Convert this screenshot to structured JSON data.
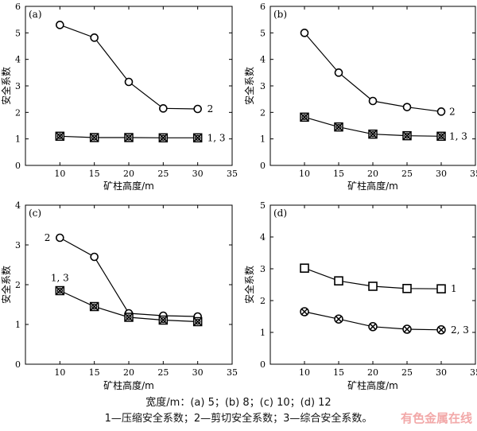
{
  "chart_data": [
    {
      "type": "line",
      "panel_label": "(a)",
      "x": [
        10,
        15,
        20,
        25,
        30
      ],
      "xlabel": "矿柱高度/m",
      "ylabel": "安全系数",
      "xlim": [
        5,
        35
      ],
      "ylim": [
        0,
        6
      ],
      "xticks": [
        "10",
        "15",
        "20",
        "25",
        "30",
        "35"
      ],
      "yticks": [
        "0",
        "1",
        "2",
        "3",
        "4",
        "5",
        "6"
      ],
      "series": [
        {
          "name": "2",
          "marker": "circle",
          "values": [
            5.3,
            4.82,
            3.15,
            2.15,
            2.13
          ]
        },
        {
          "name": "1, 3",
          "marker": "boxx",
          "values": [
            1.1,
            1.05,
            1.05,
            1.04,
            1.04
          ]
        }
      ]
    },
    {
      "type": "line",
      "panel_label": "(b)",
      "x": [
        10,
        15,
        20,
        25,
        30
      ],
      "xlabel": "矿柱高度/m",
      "ylabel": "安全系数",
      "xlim": [
        5,
        35
      ],
      "ylim": [
        0,
        6
      ],
      "xticks": [
        "10",
        "15",
        "20",
        "25",
        "30",
        "35"
      ],
      "yticks": [
        "0",
        "1",
        "2",
        "3",
        "4",
        "5",
        "6"
      ],
      "series": [
        {
          "name": "2",
          "marker": "circle",
          "values": [
            5.0,
            3.5,
            2.43,
            2.2,
            2.03
          ]
        },
        {
          "name": "1, 3",
          "marker": "boxx",
          "values": [
            1.82,
            1.45,
            1.18,
            1.12,
            1.1
          ]
        }
      ]
    },
    {
      "type": "line",
      "panel_label": "(c)",
      "x": [
        10,
        15,
        20,
        25,
        30
      ],
      "xlabel": "矿柱高度/m",
      "ylabel": "安全系数",
      "xlim": [
        5,
        35
      ],
      "ylim": [
        0,
        4
      ],
      "xticks": [
        "10",
        "15",
        "20",
        "25",
        "30",
        "35"
      ],
      "yticks": [
        "0",
        "1",
        "2",
        "3",
        "4"
      ],
      "series": [
        {
          "name": "2",
          "marker": "circle",
          "values": [
            3.18,
            2.7,
            1.28,
            1.22,
            1.2
          ]
        },
        {
          "name": "1, 3",
          "marker": "boxx",
          "values": [
            1.85,
            1.45,
            1.18,
            1.11,
            1.07
          ]
        }
      ]
    },
    {
      "type": "line",
      "panel_label": "(d)",
      "x": [
        10,
        15,
        20,
        25,
        30
      ],
      "xlabel": "矿柱高度/m",
      "ylabel": "安全系数",
      "xlim": [
        5,
        35
      ],
      "ylim": [
        0,
        5
      ],
      "xticks": [
        "10",
        "15",
        "20",
        "25",
        "30",
        "35"
      ],
      "yticks": [
        "0",
        "1",
        "2",
        "3",
        "4",
        "5"
      ],
      "series": [
        {
          "name": "1",
          "marker": "square",
          "values": [
            3.02,
            2.62,
            2.45,
            2.38,
            2.37
          ]
        },
        {
          "name": "2, 3",
          "marker": "circlex",
          "values": [
            1.65,
            1.42,
            1.18,
            1.1,
            1.08
          ]
        }
      ]
    }
  ],
  "caption_line1": "宽度/m：(a) 5；(b) 8；(c) 10；(d) 12",
  "caption_line2": "1—压缩安全系数；2—剪切安全系数；3—综合安全系数。",
  "watermark": "有色金属在线"
}
